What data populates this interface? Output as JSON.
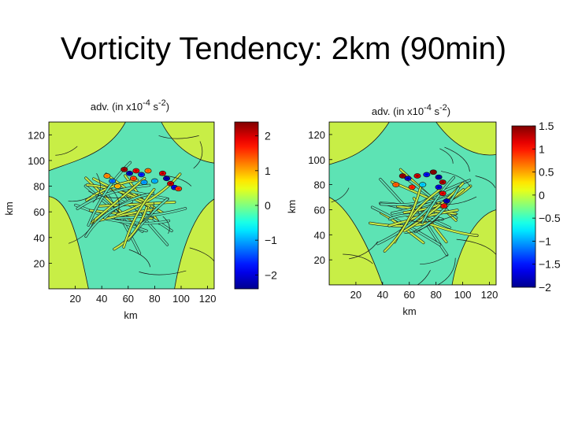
{
  "slide": {
    "title": "Vorticity Tendency: 2km (90min)"
  },
  "colormap": {
    "name": "jet",
    "stops": [
      "#00008f",
      "#0000ff",
      "#0080ff",
      "#00ffff",
      "#80ff80",
      "#ffff00",
      "#ff8000",
      "#ff0000",
      "#800000"
    ],
    "contour_color": "#1a1a1a",
    "background_level_color": "#5de3b4",
    "positive_band_color": "#c8ee46"
  },
  "chart_data": [
    {
      "type": "heatmap",
      "title_text": "adv. (in x10",
      "title_exp1": "-4",
      "title_mid": " s",
      "title_exp2": "-2",
      "title_close": ")",
      "xlabel": "km",
      "ylabel": "km",
      "xlim": [
        0,
        125
      ],
      "ylim": [
        0,
        130
      ],
      "x_ticks": [
        20,
        40,
        60,
        80,
        100,
        120
      ],
      "y_ticks": [
        20,
        40,
        60,
        80,
        100,
        120
      ],
      "colorbar": {
        "range": [
          -2.4,
          2.4
        ],
        "ticks": [
          2,
          1,
          0,
          -1,
          -2
        ],
        "tick_labels": [
          "2",
          "1",
          "0",
          "−1",
          "−2"
        ]
      },
      "field": "vorticity tendency (advection)",
      "cells": [
        {
          "x": 57,
          "y": 93,
          "value": 2.2
        },
        {
          "x": 61,
          "y": 90,
          "value": -2.1
        },
        {
          "x": 66,
          "y": 92,
          "value": 1.8
        },
        {
          "x": 70,
          "y": 89,
          "value": -1.6
        },
        {
          "x": 75,
          "y": 92,
          "value": 1.2
        },
        {
          "x": 86,
          "y": 90,
          "value": 1.9
        },
        {
          "x": 89,
          "y": 86,
          "value": -2.2
        },
        {
          "x": 92,
          "y": 82,
          "value": 2.0
        },
        {
          "x": 95,
          "y": 79,
          "value": -1.8
        },
        {
          "x": 98,
          "y": 78,
          "value": 1.5
        },
        {
          "x": 44,
          "y": 88,
          "value": 1.1
        },
        {
          "x": 48,
          "y": 84,
          "value": -1.2
        },
        {
          "x": 52,
          "y": 80,
          "value": 0.9
        },
        {
          "x": 80,
          "y": 84,
          "value": -0.9
        },
        {
          "x": 64,
          "y": 86,
          "value": 1.4
        },
        {
          "x": 72,
          "y": 83,
          "value": -1.0
        }
      ]
    },
    {
      "type": "heatmap",
      "title_text": "adv. (in x10",
      "title_exp1": "-4",
      "title_mid": " s",
      "title_exp2": "-2",
      "title_close": ")",
      "xlabel": "km",
      "ylabel": "km",
      "xlim": [
        0,
        125
      ],
      "ylim": [
        0,
        130
      ],
      "x_ticks": [
        20,
        40,
        60,
        80,
        100,
        120
      ],
      "y_ticks": [
        20,
        40,
        60,
        80,
        100,
        120
      ],
      "colorbar": {
        "range": [
          -2,
          1.5
        ],
        "ticks": [
          1.5,
          1,
          0.5,
          0,
          -0.5,
          -1,
          -1.5,
          -2
        ],
        "tick_labels": [
          "1.5",
          "1",
          "0.5",
          "0",
          "−0.5",
          "−1",
          "−1.5",
          "−2"
        ]
      },
      "field": "vorticity tendency (advection)",
      "cells": [
        {
          "x": 55,
          "y": 87,
          "value": 1.4
        },
        {
          "x": 59,
          "y": 85,
          "value": -1.7
        },
        {
          "x": 66,
          "y": 87,
          "value": 1.2
        },
        {
          "x": 73,
          "y": 88,
          "value": -1.5
        },
        {
          "x": 78,
          "y": 90,
          "value": 1.5
        },
        {
          "x": 82,
          "y": 86,
          "value": -1.9
        },
        {
          "x": 85,
          "y": 82,
          "value": 1.3
        },
        {
          "x": 82,
          "y": 78,
          "value": -1.6
        },
        {
          "x": 85,
          "y": 73,
          "value": 1.1
        },
        {
          "x": 88,
          "y": 67,
          "value": -1.8
        },
        {
          "x": 86,
          "y": 63,
          "value": 1.0
        },
        {
          "x": 62,
          "y": 78,
          "value": 0.9
        },
        {
          "x": 70,
          "y": 80,
          "value": -0.8
        },
        {
          "x": 50,
          "y": 80,
          "value": 0.7
        }
      ]
    }
  ]
}
